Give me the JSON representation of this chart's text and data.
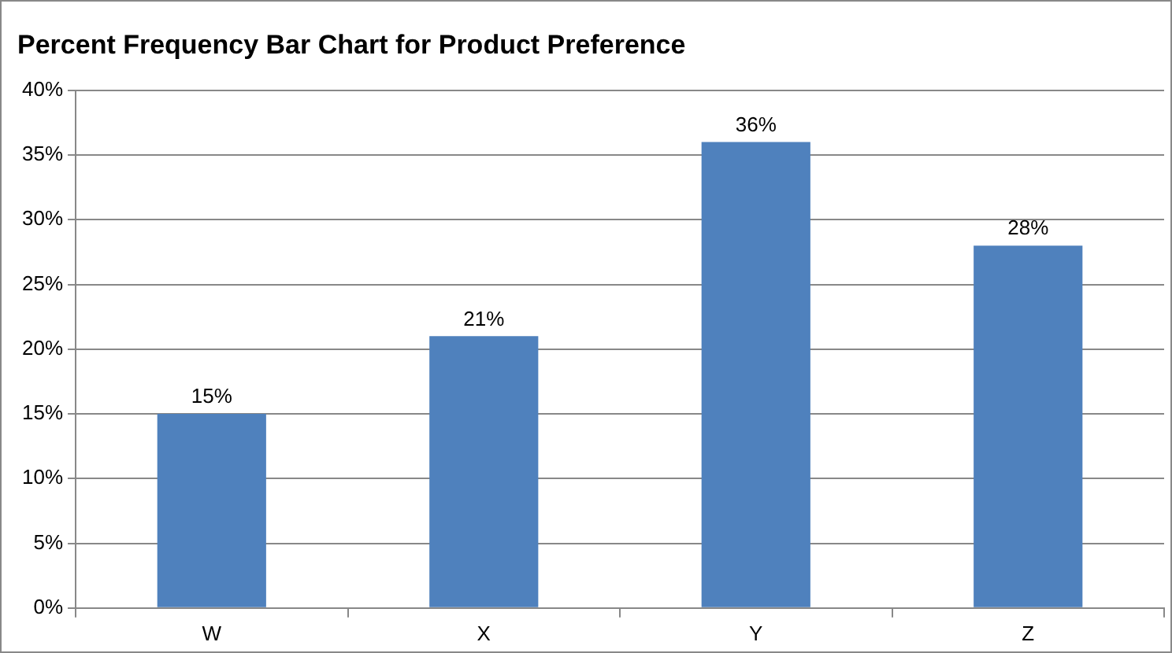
{
  "chart_data": {
    "type": "bar",
    "title": "Percent Frequency Bar Chart for Product Preference",
    "categories": [
      "W",
      "X",
      "Y",
      "Z"
    ],
    "values": [
      15,
      21,
      36,
      28
    ],
    "value_labels": [
      "15%",
      "21%",
      "36%",
      "28%"
    ],
    "color": "#4f81bd",
    "ylim": [
      0,
      40
    ],
    "yticks": [
      {
        "value": 0,
        "label": "0%"
      },
      {
        "value": 5,
        "label": "5%"
      },
      {
        "value": 10,
        "label": "10%"
      },
      {
        "value": 15,
        "label": "15%"
      },
      {
        "value": 20,
        "label": "20%"
      },
      {
        "value": 25,
        "label": "25%"
      },
      {
        "value": 30,
        "label": "30%"
      },
      {
        "value": 35,
        "label": "35%"
      },
      {
        "value": 40,
        "label": "40%"
      }
    ],
    "grid": "y",
    "legend": false
  }
}
